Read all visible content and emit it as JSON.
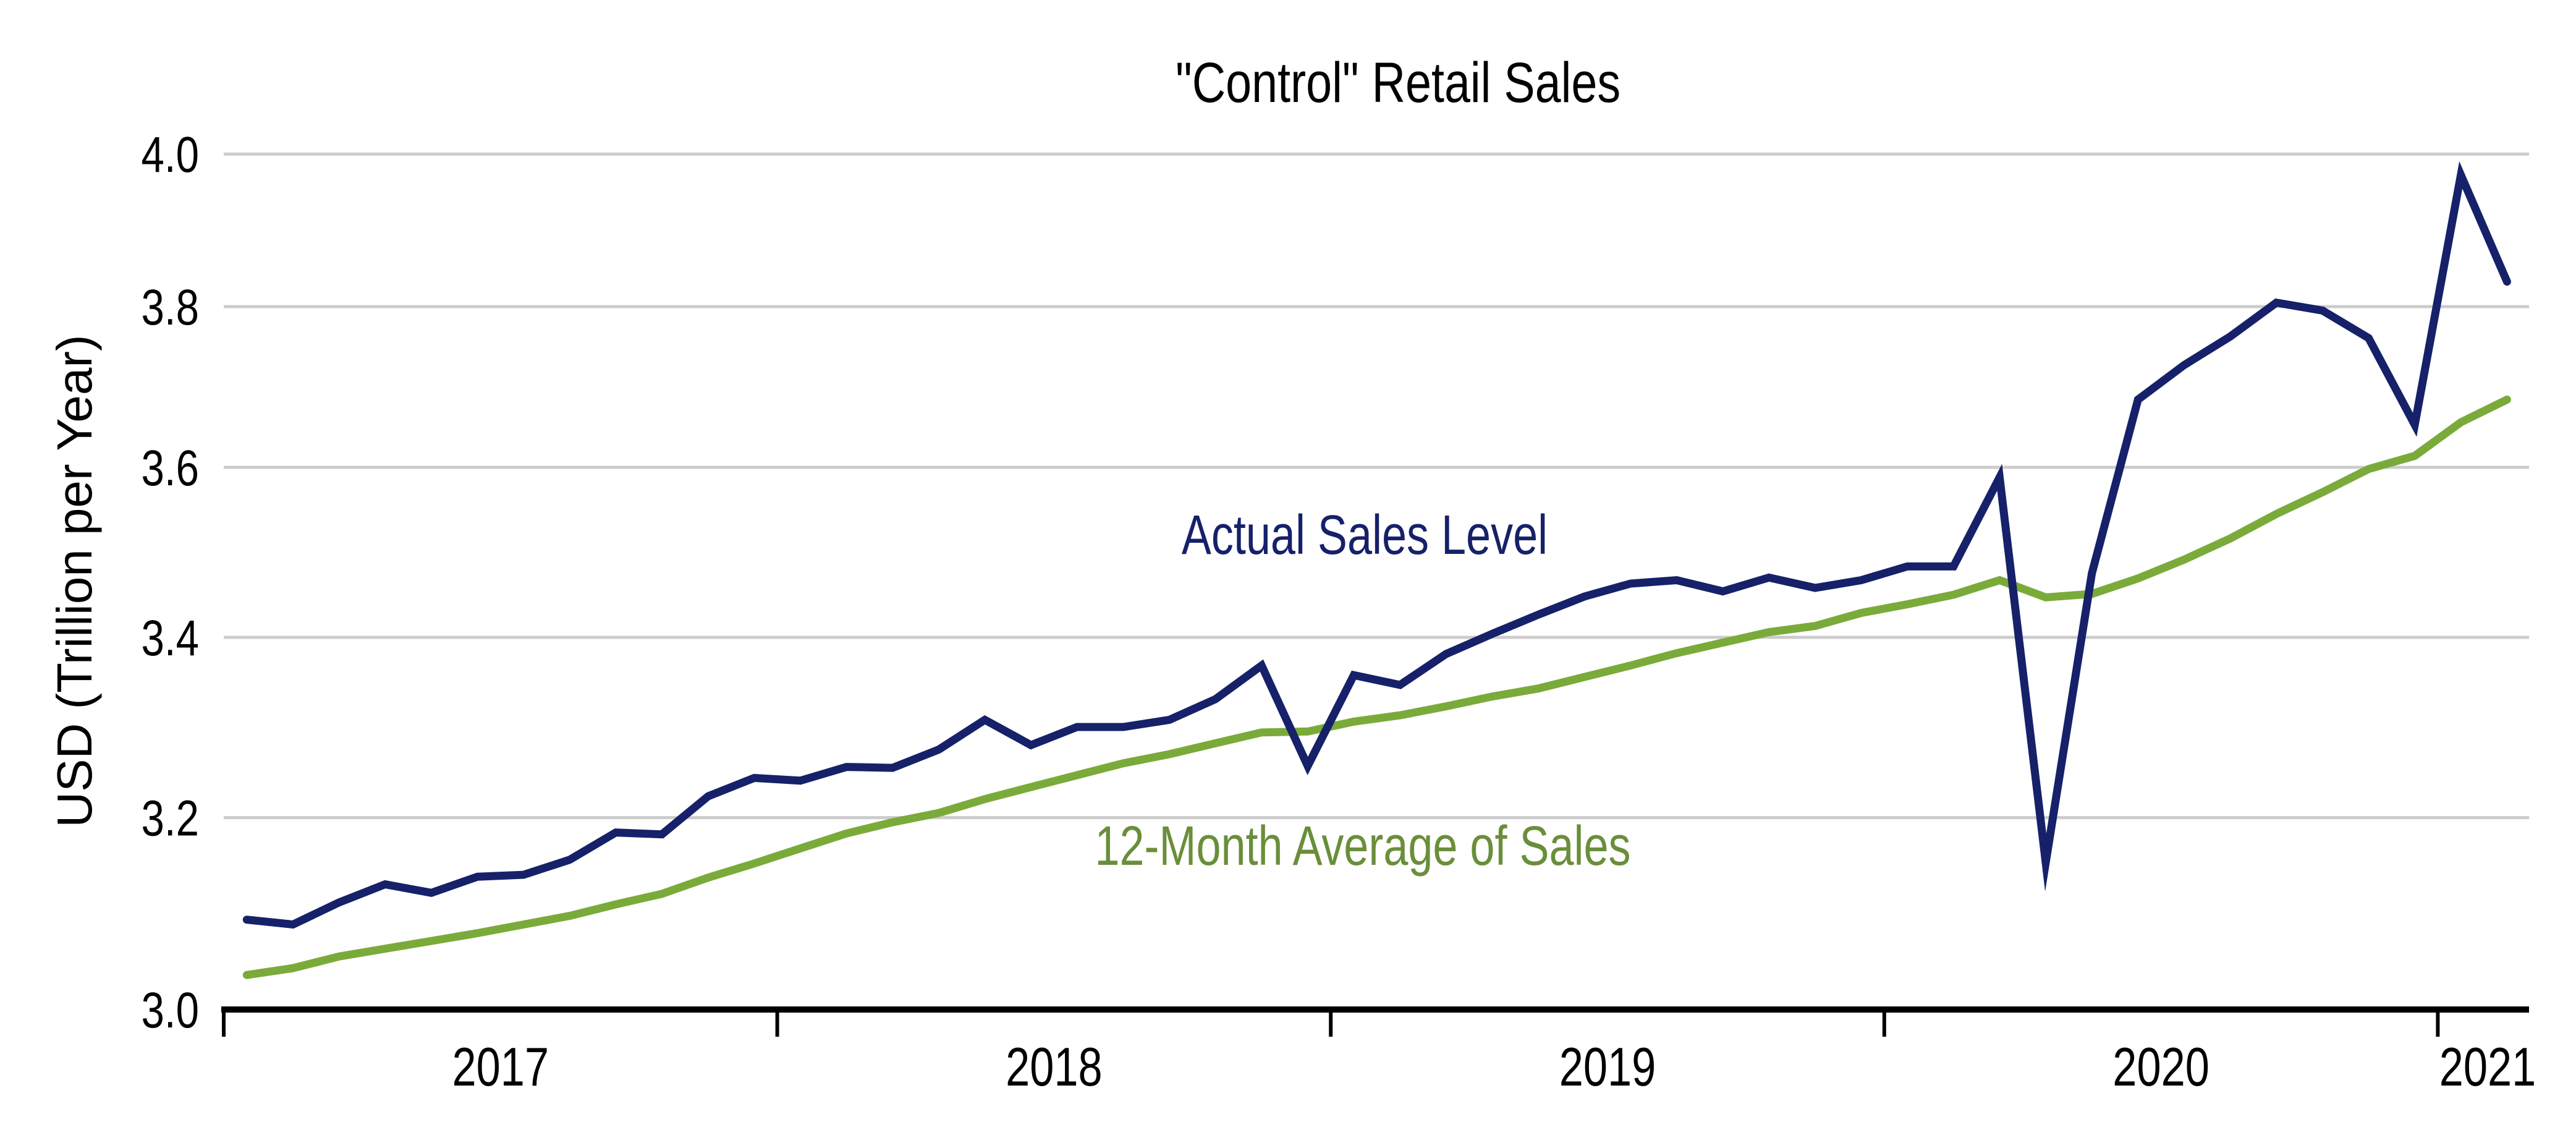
{
  "chart_data": {
    "type": "line",
    "title": "\"Control\" Retail Sales",
    "xlabel": "",
    "ylabel": "USD (Trillion per Year)",
    "y_scale": "log",
    "ylim": [
      3.0,
      4.0
    ],
    "yticks": [
      3.0,
      3.2,
      3.4,
      3.6,
      3.8,
      4.0
    ],
    "ytick_labels": [
      "3.0",
      "3.2",
      "3.4",
      "3.6",
      "3.8",
      "4.0"
    ],
    "grid": "horizontal",
    "x_frequency": "monthly",
    "x_start": "2017-01",
    "x_end": "2021-02",
    "xtick_years": [
      "2017",
      "2018",
      "2019",
      "2020",
      "2021"
    ],
    "x": [
      "2017-01",
      "2017-02",
      "2017-03",
      "2017-04",
      "2017-05",
      "2017-06",
      "2017-07",
      "2017-08",
      "2017-09",
      "2017-10",
      "2017-11",
      "2017-12",
      "2018-01",
      "2018-02",
      "2018-03",
      "2018-04",
      "2018-05",
      "2018-06",
      "2018-07",
      "2018-08",
      "2018-09",
      "2018-10",
      "2018-11",
      "2018-12",
      "2019-01",
      "2019-02",
      "2019-03",
      "2019-04",
      "2019-05",
      "2019-06",
      "2019-07",
      "2019-08",
      "2019-09",
      "2019-10",
      "2019-11",
      "2019-12",
      "2020-01",
      "2020-02",
      "2020-03",
      "2020-04",
      "2020-05",
      "2020-06",
      "2020-07",
      "2020-08",
      "2020-09",
      "2020-10",
      "2020-11",
      "2020-12",
      "2021-01",
      "2021-02"
    ],
    "series": [
      {
        "name": "Actual Sales Level",
        "color": "#16216a",
        "values": [
          3.092,
          3.087,
          3.11,
          3.129,
          3.12,
          3.137,
          3.139,
          3.155,
          3.184,
          3.182,
          3.223,
          3.243,
          3.24,
          3.255,
          3.254,
          3.274,
          3.307,
          3.279,
          3.299,
          3.299,
          3.307,
          3.33,
          3.368,
          3.256,
          3.357,
          3.346,
          3.381,
          3.404,
          3.426,
          3.447,
          3.462,
          3.466,
          3.453,
          3.469,
          3.457,
          3.466,
          3.482,
          3.482,
          3.588,
          3.152,
          3.474,
          3.683,
          3.726,
          3.762,
          3.805,
          3.795,
          3.76,
          3.652,
          3.972,
          3.832
        ]
      },
      {
        "name": "12-Month Average of Sales",
        "color": "#7aab3a",
        "label_color": "#6a8e3a",
        "values": [
          3.035,
          3.042,
          3.054,
          3.062,
          3.07,
          3.078,
          3.087,
          3.096,
          3.108,
          3.119,
          3.136,
          3.151,
          3.167,
          3.183,
          3.195,
          3.205,
          3.22,
          3.233,
          3.246,
          3.259,
          3.269,
          3.281,
          3.293,
          3.294,
          3.305,
          3.312,
          3.322,
          3.333,
          3.342,
          3.355,
          3.368,
          3.382,
          3.394,
          3.406,
          3.413,
          3.428,
          3.438,
          3.449,
          3.466,
          3.446,
          3.45,
          3.468,
          3.49,
          3.515,
          3.544,
          3.57,
          3.598,
          3.614,
          3.655,
          3.683
        ]
      }
    ],
    "annotations": [
      {
        "text": "Actual Sales Level",
        "series": 0,
        "placement": "above-line-center"
      },
      {
        "text": "12-Month Average of Sales",
        "series": 1,
        "placement": "below-line-center"
      }
    ],
    "legend": "none (inline labels)"
  }
}
